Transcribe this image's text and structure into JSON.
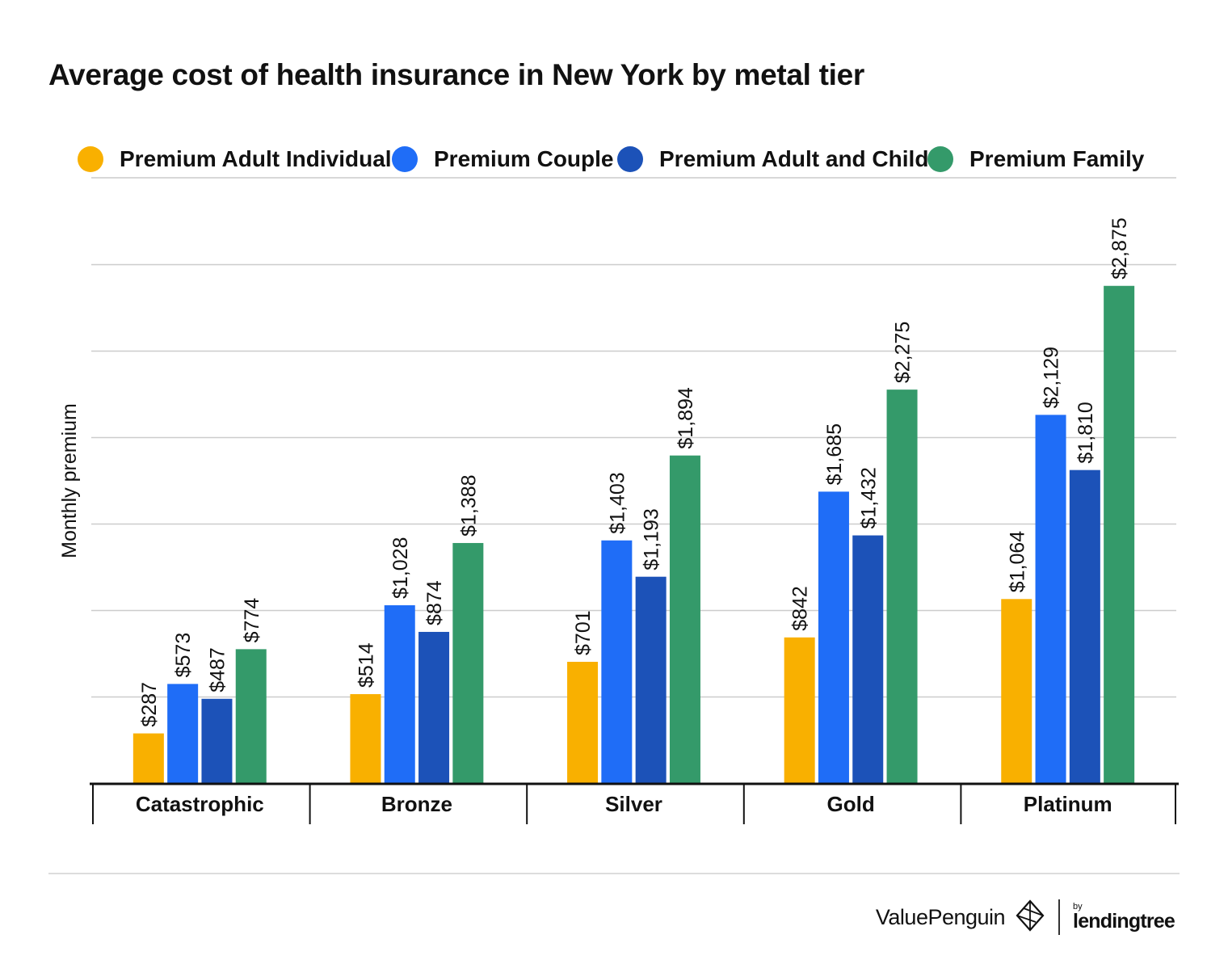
{
  "title": "Average cost of health insurance in New York by metal tier",
  "chart_data": {
    "type": "bar",
    "title": "Average cost of health insurance in New York by metal tier",
    "categories": [
      "Catastrophic",
      "Bronze",
      "Silver",
      "Gold",
      "Platinum"
    ],
    "series": [
      {
        "name": "Premium Adult Individual",
        "color": "#F9B000",
        "values": [
          287,
          514,
          701,
          842,
          1064
        ],
        "labels": [
          "$287",
          "$514",
          "$701",
          "$842",
          "$1,064"
        ]
      },
      {
        "name": "Premium Couple",
        "color": "#1F6DF7",
        "values": [
          573,
          1028,
          1403,
          1685,
          2129
        ],
        "labels": [
          "$573",
          "$1,028",
          "$1,403",
          "$1,685",
          "$2,129"
        ]
      },
      {
        "name": "Premium Adult and Child",
        "color": "#1C52B8",
        "values": [
          487,
          874,
          1193,
          1432,
          1810
        ],
        "labels": [
          "$487",
          "$874",
          "$1,193",
          "$1,432",
          "$1,810"
        ]
      },
      {
        "name": "Premium Family",
        "color": "#349A6A",
        "values": [
          774,
          1388,
          1894,
          2275,
          2875
        ],
        "labels": [
          "$774",
          "$1,388",
          "$1,894",
          "$2,275",
          "$2,875"
        ]
      }
    ],
    "xlabel": "",
    "ylabel": "Monthly premium",
    "ylim": [
      0,
      3000
    ],
    "y_gridline_step": 500,
    "y_tick_labels_shown": false,
    "grid": true,
    "legend": "top",
    "data_labels": "rotated-above-bars"
  },
  "branding": {
    "valuepenguin": "ValuePenguin",
    "by": "by",
    "lendingtree": "lendingtree"
  }
}
